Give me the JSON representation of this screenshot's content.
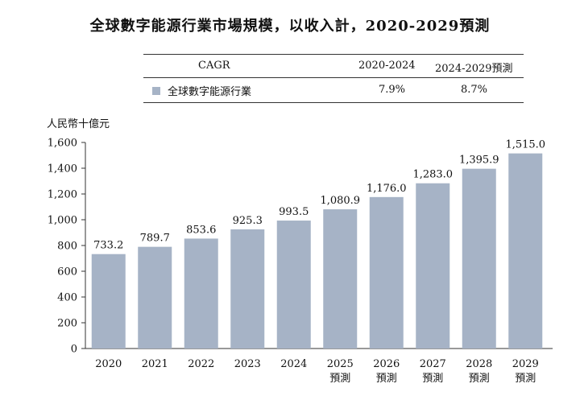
{
  "title": "全球數字能源行業市場規模，以收入計，2020-2029預測",
  "cagr_table": {
    "header": "CAGR",
    "period_1": "2020-2024",
    "period_2": "2024-2029預測",
    "row_label": "全球數字能源行業",
    "value_1": "7.9%",
    "value_2": "8.7%"
  },
  "colors": {
    "bar": "#a6b3c6",
    "axis": "#333333"
  },
  "chart_data": {
    "type": "bar",
    "title": "全球數字能源行業市場規模，以收入計，2020-2029預測",
    "ylabel": "人民幣十億元",
    "xlabel": "",
    "ylim": [
      0,
      1600
    ],
    "yticks": [
      "0",
      "200",
      "400",
      "600",
      "800",
      "1,000",
      "1,200",
      "1,400",
      "1,600"
    ],
    "categories": [
      "2020",
      "2021",
      "2022",
      "2023",
      "2024",
      "2025",
      "2026",
      "2027",
      "2028",
      "2029"
    ],
    "category_sublabels": [
      "",
      "",
      "",
      "",
      "",
      "預測",
      "預測",
      "預測",
      "預測",
      "預測"
    ],
    "values": [
      733.2,
      789.7,
      853.6,
      925.3,
      993.5,
      1080.9,
      1176.0,
      1283.0,
      1395.9,
      1515.0
    ],
    "value_labels": [
      "733.2",
      "789.7",
      "853.6",
      "925.3",
      "993.5",
      "1,080.9",
      "1,176.0",
      "1,283.0",
      "1,395.9",
      "1,515.0"
    ],
    "legend": "全球數字能源行業"
  }
}
